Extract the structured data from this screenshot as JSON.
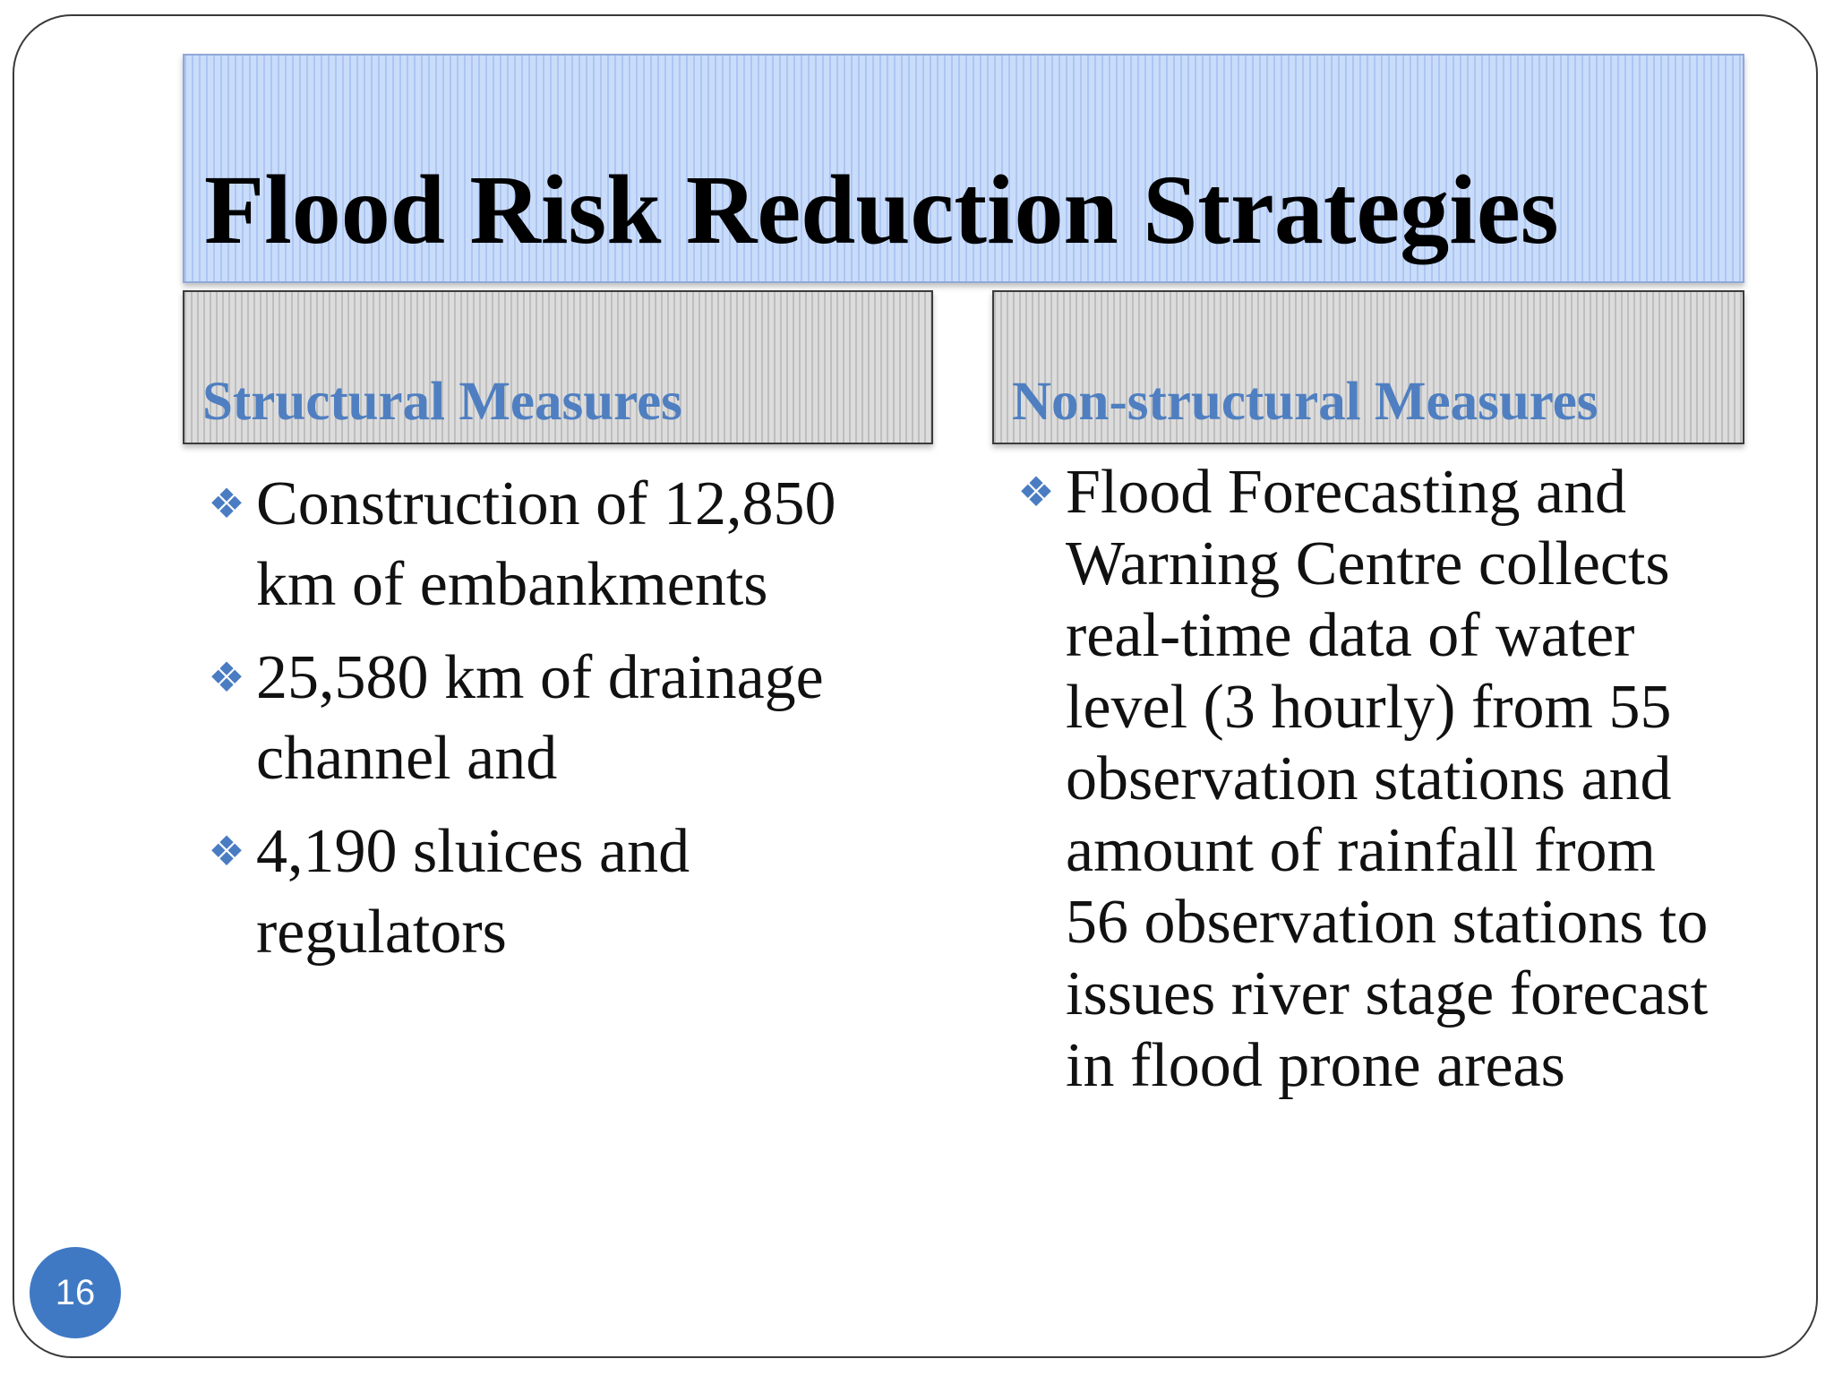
{
  "slide": {
    "title": "Flood Risk Reduction Strategies",
    "page_number": "16",
    "bullet_icon": "four-diamond-bullet-icon",
    "colors": {
      "title_box": "#c9dcfa",
      "header_box": "#dcdcdc",
      "header_text": "#4f7fc1",
      "bullet": "#4a7cc2",
      "page_badge": "#3f79c4"
    }
  },
  "left_column": {
    "header": "Structural Measures",
    "bullets": [
      "Construction of 12,850 km of embankments",
      "25,580 km of drainage channel and",
      "4,190 sluices and regulators"
    ]
  },
  "right_column": {
    "header": "Non-structural Measures",
    "bullets": [
      "Flood Forecasting and Warning Centre collects real-time data of water level (3 hourly) from 55 observation stations and amount of rainfall from 56 observation stations to issues river stage forecast in flood prone areas"
    ]
  }
}
